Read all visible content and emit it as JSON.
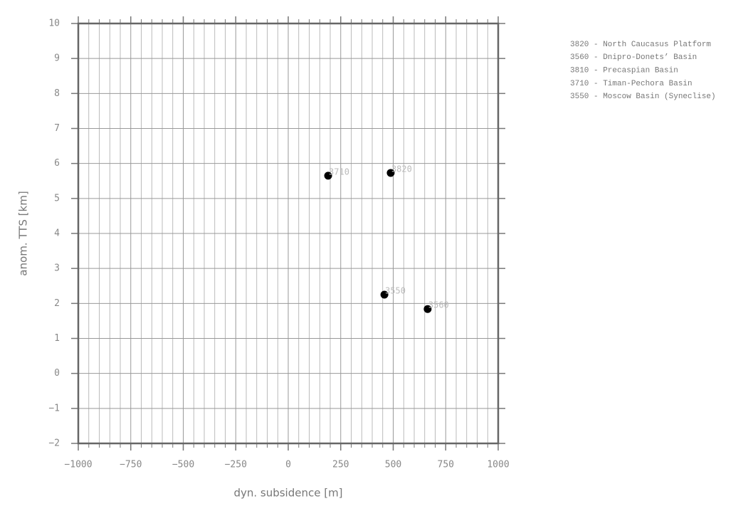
{
  "chart_data": {
    "type": "scatter",
    "xlabel": "dyn. subsidence [m]",
    "ylabel": "anom. TTS [km]",
    "xlim": [
      -1000,
      1000
    ],
    "ylim": [
      -2,
      10
    ],
    "xticks": [
      {
        "value": -1000,
        "label": "−1000"
      },
      {
        "value": -750,
        "label": "−750"
      },
      {
        "value": -500,
        "label": "−500"
      },
      {
        "value": -250,
        "label": "−250"
      },
      0,
      250,
      500,
      750,
      1000
    ],
    "yticks": [
      {
        "value": -2,
        "label": "−2"
      },
      {
        "value": -1,
        "label": "−1"
      },
      0,
      1,
      2,
      3,
      4,
      5,
      6,
      7,
      8,
      9,
      10
    ],
    "xgrid": [
      -950,
      -900,
      -850,
      -800,
      -700,
      -650,
      -600,
      -550,
      -450,
      -400,
      -350,
      -300,
      -200,
      -150,
      -100,
      -50,
      50,
      100,
      150,
      200,
      300,
      350,
      400,
      450,
      550,
      600,
      650,
      700,
      800,
      850,
      900,
      950
    ],
    "grid": true,
    "series": [
      {
        "color": "#000000",
        "x": [
          190,
          488,
          458,
          664
        ],
        "values": [
          5.65,
          5.73,
          2.25,
          1.84
        ],
        "point_labels": [
          "3710",
          "3820",
          "3550",
          "3560"
        ]
      }
    ],
    "legend": [
      "3820 - North Caucasus Platform",
      "3560 - Dnipro-Donets’ Basin",
      "3810 - Precaspian Basin",
      "3710 - Timan-Pechora Basin",
      "3550 - Moscow Basin (Syneclise)"
    ]
  }
}
